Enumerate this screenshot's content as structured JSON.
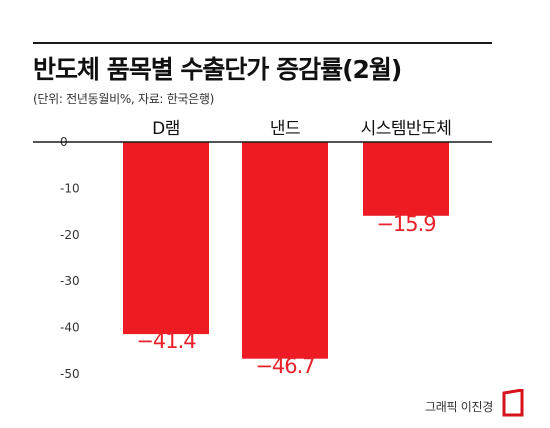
{
  "title": "반도체 품목별 수출단가 증감률(2월)",
  "subtitle": "(단위: 전년동월비%, 자료: 한국은행)",
  "credit": "그래픽 이진경",
  "colors": {
    "bar": "#ed1c24",
    "label": "#e8212a",
    "line": "#1a1a1a"
  },
  "chart_data": {
    "type": "bar",
    "categories": [
      "D램",
      "낸드",
      "시스템반도체"
    ],
    "values": [
      -41.4,
      -46.7,
      -15.9
    ],
    "value_labels": [
      "−41.4",
      "−46.7",
      "−15.9"
    ],
    "yticks": [
      0,
      -10,
      -20,
      -30,
      -40,
      -50
    ],
    "ylim": [
      -50,
      0
    ],
    "grid": false,
    "legend": "none"
  }
}
